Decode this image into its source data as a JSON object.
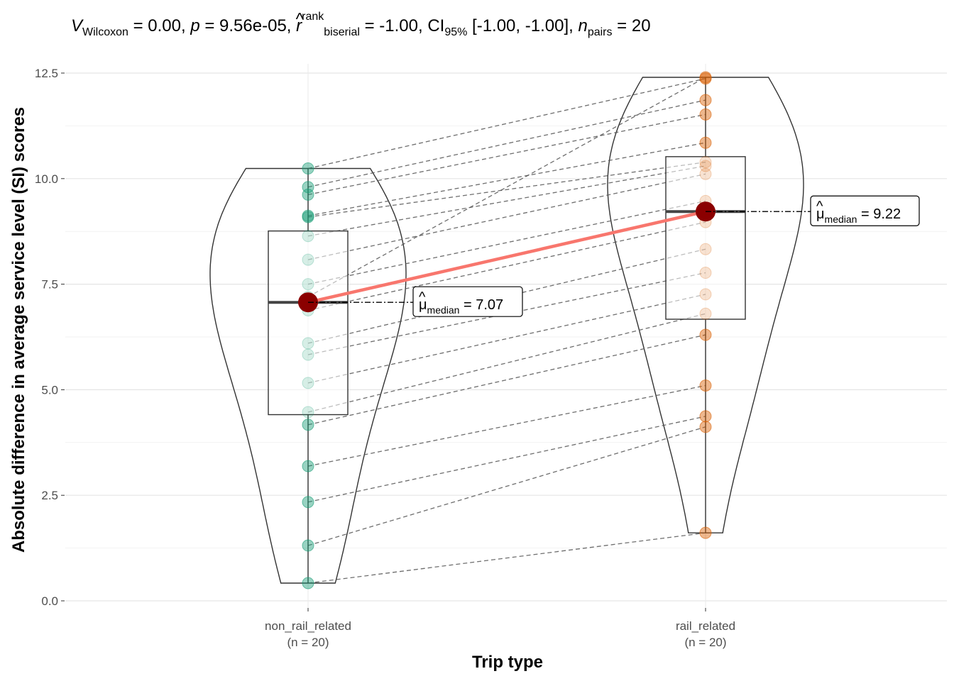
{
  "chart_data": {
    "type": "violin-box-paired-scatter",
    "subtitle": {
      "v_symbol": "V",
      "v_sub": "Wilcoxon",
      "v_value": " = 0.00, ",
      "p_symbol": "p",
      "p_value": " = 9.56e-05, ",
      "r_symbol": "r",
      "r_hat": "^",
      "r_sup": "rank",
      "r_sub": "biserial",
      "r_value": " = -1.00, CI",
      "ci_sub": "95%",
      "ci_value": " [-1.00, -1.00], ",
      "n_symbol": "n",
      "n_sub": "pairs",
      "n_value": " = 20"
    },
    "xlabel": "Trip type",
    "ylabel": "Absolute difference in average service level (SI) scores",
    "ylim": [
      0,
      12.5
    ],
    "y_ticks": [
      "0.0",
      "2.5",
      "5.0",
      "7.5",
      "10.0",
      "12.5"
    ],
    "grid": true,
    "categories": [
      {
        "name": "non_rail_related",
        "n_label": "(n = 20)",
        "color": "#1B9E77"
      },
      {
        "name": "rail_related",
        "n_label": "(n = 20)",
        "color": "#D95F02"
      }
    ],
    "series": [
      {
        "name": "non_rail_related",
        "values": [
          0.42,
          1.31,
          2.34,
          3.19,
          4.17,
          4.47,
          5.16,
          5.83,
          6.1,
          6.88,
          7.07,
          7.5,
          8.08,
          8.64,
          9.09,
          9.12,
          9.62,
          9.8,
          10.24,
          7.2
        ]
      },
      {
        "name": "rail_related",
        "values": [
          1.61,
          4.12,
          4.37,
          5.1,
          6.3,
          6.8,
          7.26,
          7.77,
          8.33,
          8.97,
          9.22,
          9.47,
          10.11,
          10.3,
          10.39,
          10.85,
          11.52,
          11.86,
          12.37,
          12.4
        ]
      }
    ],
    "boxes": [
      {
        "q1": 4.41,
        "median": 7.07,
        "q3": 8.76,
        "whisker_low": 0.42,
        "whisker_high": 10.24
      },
      {
        "q1": 6.67,
        "median": 9.22,
        "q3": 10.52,
        "whisker_low": 1.61,
        "whisker_high": 12.4
      }
    ],
    "medians": [
      {
        "symbol": "μ",
        "hat": "^",
        "sub": "median",
        "value": " = 7.07"
      },
      {
        "symbol": "μ",
        "hat": "^",
        "sub": "median",
        "value": " = 9.22"
      }
    ],
    "median_line_color": "#F8766D",
    "median_point_color": "#8B0000"
  }
}
